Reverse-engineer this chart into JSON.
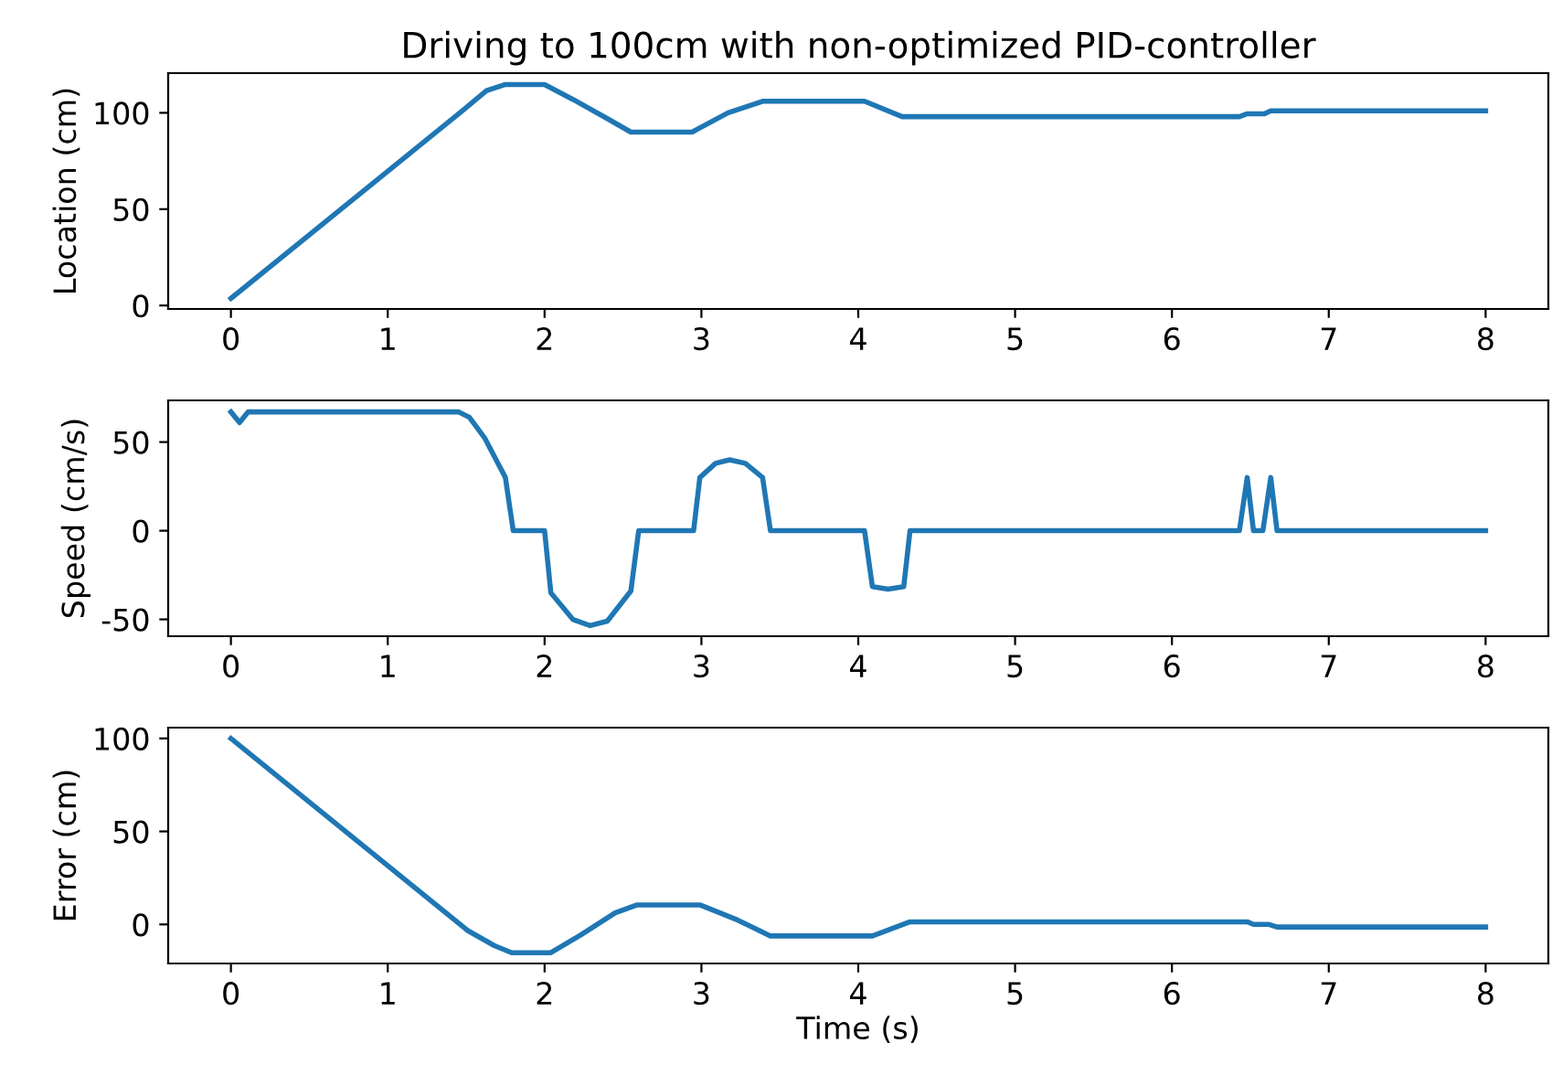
{
  "chart_data": [
    {
      "type": "line",
      "title": "Driving to 100cm with non-optimized PID-controller",
      "ylabel": "Location (cm)",
      "xlim": [
        -0.4,
        8.4
      ],
      "xticks": [
        0,
        1,
        2,
        3,
        4,
        5,
        6,
        7,
        8
      ],
      "ylim": [
        -1.8,
        120.6
      ],
      "yticks": [
        0,
        50,
        100
      ],
      "grid": false,
      "legend": false,
      "series": [
        {
          "color": "#1f77b4",
          "x": [
            0,
            1.46,
            1.63,
            1.75,
            2.0,
            2.18,
            2.4,
            2.55,
            2.94,
            3.17,
            3.39,
            4.04,
            4.28,
            6.43,
            6.48,
            6.59,
            6.63,
            8
          ],
          "values": [
            3.7,
            100,
            111.5,
            114.7,
            114.7,
            107,
            97,
            90,
            90,
            100,
            106,
            106,
            98,
            98,
            99.5,
            99.5,
            101,
            101
          ]
        }
      ]
    },
    {
      "type": "line",
      "ylabel": "Speed (cm/s)",
      "xlim": [
        -0.4,
        8.4
      ],
      "xticks": [
        0,
        1,
        2,
        3,
        4,
        5,
        6,
        7,
        8
      ],
      "ylim": [
        -59.5,
        73.5
      ],
      "yticks": [
        -50,
        0,
        50
      ],
      "grid": false,
      "legend": false,
      "series": [
        {
          "color": "#1f77b4",
          "x": [
            0,
            0.055,
            0.11,
            1.45,
            1.52,
            1.62,
            1.75,
            1.8,
            2.0,
            2.04,
            2.18,
            2.29,
            2.4,
            2.55,
            2.6,
            2.95,
            2.99,
            3.09,
            3.18,
            3.28,
            3.39,
            3.44,
            4.04,
            4.09,
            4.19,
            4.29,
            4.33,
            6.43,
            6.48,
            6.52,
            6.58,
            6.63,
            6.67,
            8
          ],
          "values": [
            67,
            61,
            67,
            67,
            64,
            52,
            30,
            0,
            0,
            -35,
            -50,
            -53.5,
            -51,
            -34,
            0,
            0,
            30,
            38,
            40,
            38,
            30,
            0,
            0,
            -31.5,
            -33,
            -31.5,
            0,
            0,
            30,
            0,
            0,
            30,
            0,
            0
          ]
        }
      ]
    },
    {
      "type": "line",
      "xlabel": "Time (s)",
      "ylabel": "Error (cm)",
      "xlim": [
        -0.4,
        8.4
      ],
      "xticks": [
        0,
        1,
        2,
        3,
        4,
        5,
        6,
        7,
        8
      ],
      "ylim": [
        -21,
        105.8
      ],
      "yticks": [
        0,
        50,
        100
      ],
      "grid": false,
      "legend": false,
      "series": [
        {
          "color": "#1f77b4",
          "x": [
            0,
            1.51,
            1.68,
            1.79,
            2.04,
            2.23,
            2.45,
            2.59,
            2.99,
            3.23,
            3.44,
            4.09,
            4.33,
            6.48,
            6.52,
            6.62,
            6.67,
            8
          ],
          "values": [
            100,
            -3.3,
            -11.4,
            -15.2,
            -15.2,
            -5.7,
            6.2,
            10.5,
            10.5,
            2.4,
            -6.2,
            -6.2,
            1.4,
            1.4,
            0,
            0,
            -1.4,
            -1.4
          ]
        }
      ]
    }
  ]
}
